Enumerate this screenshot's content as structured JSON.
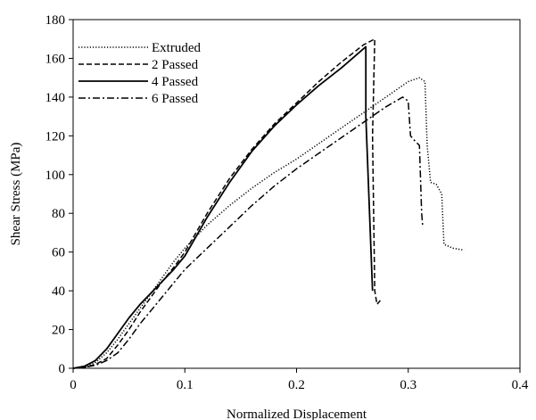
{
  "chart_data": {
    "type": "line",
    "title": "",
    "xlabel": "Normalized Displacement",
    "ylabel": "Shear Stress (MPa)",
    "xlim": [
      0,
      0.4
    ],
    "ylim": [
      0,
      180
    ],
    "x_ticks": [
      0,
      0.1,
      0.2,
      0.3,
      0.4
    ],
    "x_tick_labels": [
      "0",
      "0.1",
      "0.2",
      "0.3",
      "0.4"
    ],
    "y_ticks": [
      0,
      20,
      40,
      60,
      80,
      100,
      120,
      140,
      160,
      180
    ],
    "y_tick_labels": [
      "0",
      "20",
      "40",
      "60",
      "80",
      "100",
      "120",
      "140",
      "160",
      "180"
    ],
    "grid": false,
    "legend_position": "top-left",
    "series": [
      {
        "name": "Extruded",
        "style": "dotted",
        "color": "#000000",
        "points": [
          [
            0,
            0
          ],
          [
            0.01,
            0.5
          ],
          [
            0.02,
            3
          ],
          [
            0.03,
            8
          ],
          [
            0.04,
            15
          ],
          [
            0.05,
            23
          ],
          [
            0.06,
            31
          ],
          [
            0.07,
            39
          ],
          [
            0.08,
            47
          ],
          [
            0.09,
            55
          ],
          [
            0.1,
            62
          ],
          [
            0.12,
            74
          ],
          [
            0.14,
            84
          ],
          [
            0.16,
            93
          ],
          [
            0.18,
            101
          ],
          [
            0.2,
            108
          ],
          [
            0.22,
            116
          ],
          [
            0.24,
            124
          ],
          [
            0.26,
            132
          ],
          [
            0.28,
            140
          ],
          [
            0.3,
            148
          ],
          [
            0.31,
            150
          ],
          [
            0.315,
            148
          ],
          [
            0.317,
            115
          ],
          [
            0.32,
            96
          ],
          [
            0.325,
            95
          ],
          [
            0.33,
            90
          ],
          [
            0.332,
            64
          ],
          [
            0.34,
            62
          ],
          [
            0.35,
            61
          ]
        ]
      },
      {
        "name": "2 Passed",
        "style": "dashed",
        "color": "#000000",
        "points": [
          [
            0,
            0
          ],
          [
            0.01,
            0.5
          ],
          [
            0.02,
            2
          ],
          [
            0.03,
            5
          ],
          [
            0.04,
            12
          ],
          [
            0.05,
            20
          ],
          [
            0.06,
            29
          ],
          [
            0.07,
            37
          ],
          [
            0.08,
            45
          ],
          [
            0.09,
            52
          ],
          [
            0.1,
            60
          ],
          [
            0.11,
            70
          ],
          [
            0.12,
            80
          ],
          [
            0.14,
            98
          ],
          [
            0.16,
            113
          ],
          [
            0.18,
            126
          ],
          [
            0.2,
            137
          ],
          [
            0.22,
            148
          ],
          [
            0.24,
            158
          ],
          [
            0.26,
            167
          ],
          [
            0.27,
            170
          ],
          [
            0.268,
            120
          ],
          [
            0.27,
            40
          ],
          [
            0.272,
            33
          ],
          [
            0.275,
            35
          ]
        ]
      },
      {
        "name": "4 Passed",
        "style": "solid",
        "color": "#000000",
        "points": [
          [
            0,
            0
          ],
          [
            0.01,
            1
          ],
          [
            0.02,
            4
          ],
          [
            0.03,
            10
          ],
          [
            0.04,
            18
          ],
          [
            0.05,
            26
          ],
          [
            0.06,
            33
          ],
          [
            0.07,
            39
          ],
          [
            0.08,
            45
          ],
          [
            0.09,
            51
          ],
          [
            0.1,
            58
          ],
          [
            0.11,
            68
          ],
          [
            0.12,
            78
          ],
          [
            0.14,
            96
          ],
          [
            0.16,
            112
          ],
          [
            0.18,
            125
          ],
          [
            0.2,
            136
          ],
          [
            0.22,
            146
          ],
          [
            0.24,
            155
          ],
          [
            0.26,
            165
          ],
          [
            0.262,
            166
          ],
          [
            0.262,
            130
          ],
          [
            0.268,
            40
          ]
        ]
      },
      {
        "name": "6 Passed",
        "style": "dash-dot",
        "color": "#000000",
        "points": [
          [
            0,
            0
          ],
          [
            0.01,
            0.5
          ],
          [
            0.02,
            1.5
          ],
          [
            0.03,
            4
          ],
          [
            0.04,
            8
          ],
          [
            0.05,
            15
          ],
          [
            0.06,
            23
          ],
          [
            0.07,
            30
          ],
          [
            0.08,
            37
          ],
          [
            0.09,
            44
          ],
          [
            0.1,
            51
          ],
          [
            0.12,
            62
          ],
          [
            0.14,
            73
          ],
          [
            0.16,
            84
          ],
          [
            0.18,
            94
          ],
          [
            0.2,
            103
          ],
          [
            0.22,
            111
          ],
          [
            0.24,
            119
          ],
          [
            0.26,
            127
          ],
          [
            0.28,
            135
          ],
          [
            0.295,
            140
          ],
          [
            0.3,
            138
          ],
          [
            0.302,
            120
          ],
          [
            0.305,
            118
          ],
          [
            0.31,
            115
          ],
          [
            0.312,
            80
          ],
          [
            0.313,
            73
          ]
        ]
      }
    ]
  }
}
